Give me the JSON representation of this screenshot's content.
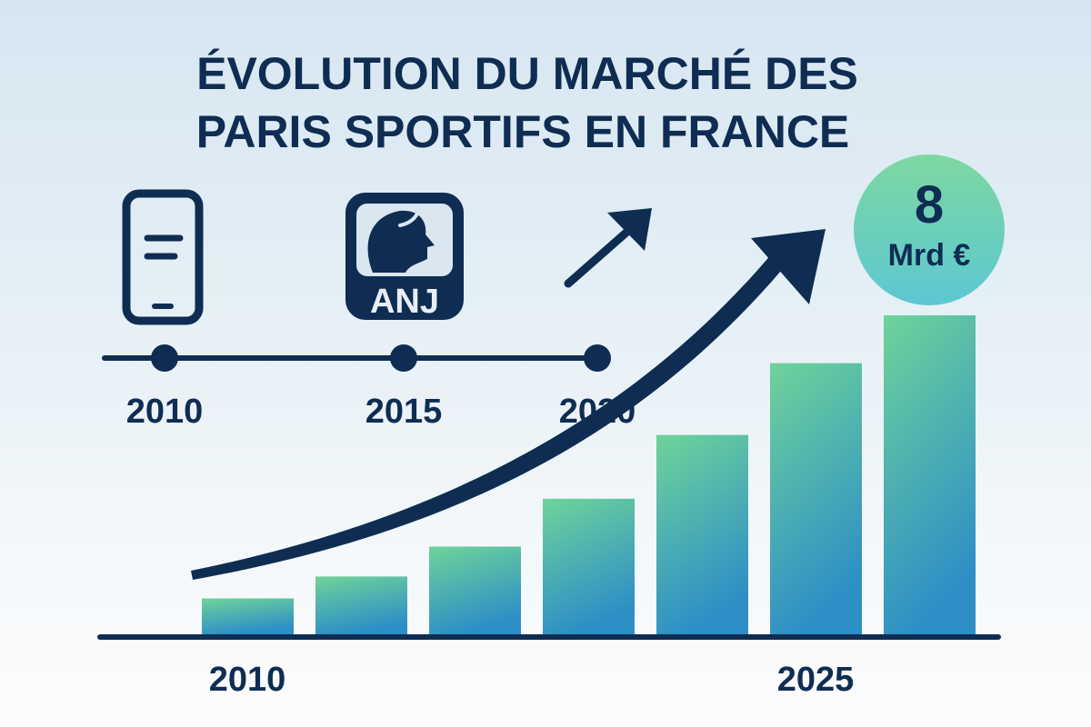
{
  "chart_data": {
    "type": "bar",
    "title": [
      "ÉVOLUTION DU MARCHÉ DES",
      "PARIS SPORTIFS EN FRANCE"
    ],
    "categories": [
      "2010",
      "",
      "",
      "",
      "",
      "",
      "2025"
    ],
    "values": [
      0.9,
      1.45,
      2.2,
      3.4,
      5.0,
      6.8,
      8
    ],
    "unit": "Mrd €",
    "ylim": [
      0,
      8
    ],
    "grid": false,
    "x_tick_labels": [
      "2010",
      "2025"
    ],
    "highlight": {
      "value": "8",
      "unit": "Mrd €"
    },
    "colors": {
      "navy": "#0f2d52",
      "bar_top": "#6fd39a",
      "bar_bottom": "#2e8fc6",
      "badge_top": "#7dd8a0",
      "badge_bottom": "#5cc7d3"
    }
  },
  "timeline": {
    "years": [
      "2010",
      "2015",
      "2020"
    ],
    "icons": [
      "smartphone-icon",
      "anj-logo-icon",
      "trend-up-arrow-icon"
    ],
    "anj_label": "ANJ"
  }
}
